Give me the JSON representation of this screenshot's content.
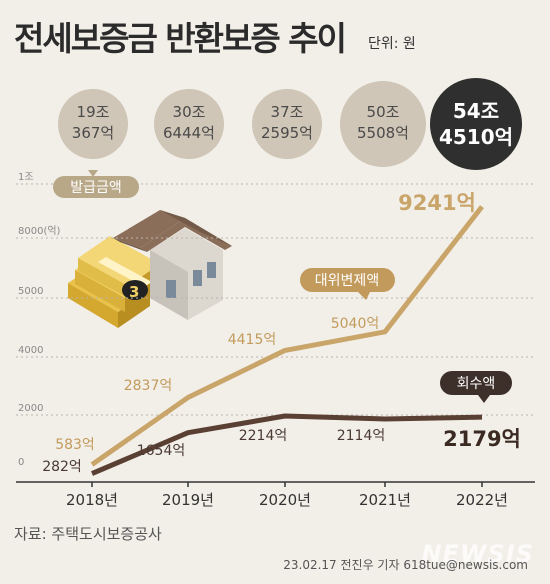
{
  "title": "전세보증금 반환보증 추이",
  "unit": "단위: 원",
  "source": "자료: 주택도시보증공사",
  "credit": "23.02.17 전진우 기자 618tue@newsis.com",
  "watermark": "NEWSIS",
  "chart_data": {
    "type": "line",
    "categories": [
      "2018년",
      "2019년",
      "2020년",
      "2021년",
      "2022년"
    ],
    "y_tick_labels": [
      "0",
      "2000",
      "4000",
      "5000",
      "8000(억)",
      "1조"
    ],
    "ylim": [
      0,
      10000
    ],
    "issuance": {
      "label": "발급금액",
      "values": [
        "19조 367억",
        "30조 6444억",
        "37조 2595억",
        "50조 5508억",
        "54조 4510억"
      ]
    },
    "series": [
      {
        "name": "대위변제액",
        "values": [
          583,
          2837,
          4415,
          5040,
          9241
        ],
        "labels": [
          "583억",
          "2837억",
          "4415억",
          "5040억",
          "9241억"
        ],
        "color": "#c9a56a"
      },
      {
        "name": "회수액",
        "values": [
          282,
          1654,
          2214,
          2114,
          2179
        ],
        "labels": [
          "282억",
          "1654억",
          "2214억",
          "2114억",
          "2179억"
        ],
        "color": "#5a3f33"
      }
    ]
  }
}
